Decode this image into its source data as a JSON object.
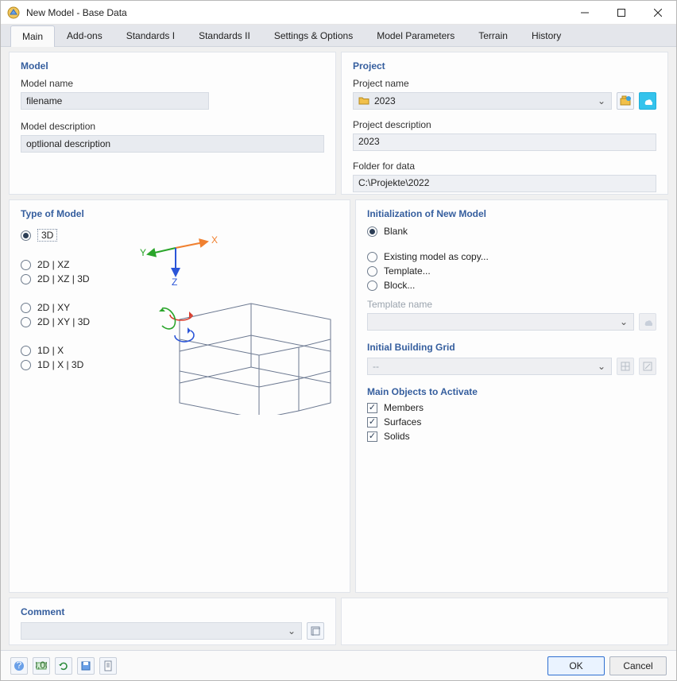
{
  "window": {
    "title": "New Model - Base Data"
  },
  "tabs": [
    {
      "label": "Main",
      "active": true
    },
    {
      "label": "Add-ons"
    },
    {
      "label": "Standards I"
    },
    {
      "label": "Standards II"
    },
    {
      "label": "Settings & Options"
    },
    {
      "label": "Model Parameters"
    },
    {
      "label": "Terrain"
    },
    {
      "label": "History"
    }
  ],
  "model": {
    "section": "Model",
    "name_label": "Model name",
    "name_value": "filename",
    "desc_label": "Model description",
    "desc_value": "optlional description"
  },
  "project": {
    "section": "Project",
    "name_label": "Project name",
    "name_value": "2023",
    "desc_label": "Project description",
    "desc_value": "2023",
    "folder_label": "Folder for data",
    "folder_value": "C:\\Projekte\\2022"
  },
  "type_of_model": {
    "section": "Type of Model",
    "axes": {
      "x": "X",
      "y": "Y",
      "z": "Z"
    },
    "options": [
      {
        "key": "3d",
        "label": "3D",
        "selected": true
      },
      {
        "key": "2d_xz",
        "label": "2D | XZ"
      },
      {
        "key": "2d_xz_3d",
        "label": "2D | XZ | 3D"
      },
      {
        "key": "2d_xy",
        "label": "2D | XY"
      },
      {
        "key": "2d_xy_3d",
        "label": "2D | XY | 3D"
      },
      {
        "key": "1d_x",
        "label": "1D | X"
      },
      {
        "key": "1d_x_3d",
        "label": "1D | X | 3D"
      }
    ]
  },
  "init": {
    "section": "Initialization of New Model",
    "options": [
      {
        "key": "blank",
        "label": "Blank",
        "selected": true
      },
      {
        "key": "existing",
        "label": "Existing model as copy..."
      },
      {
        "key": "template",
        "label": "Template..."
      },
      {
        "key": "block",
        "label": "Block..."
      }
    ],
    "template_label": "Template name",
    "template_value": ""
  },
  "building_grid": {
    "section": "Initial Building Grid",
    "value": "--"
  },
  "main_objects": {
    "section": "Main Objects to Activate",
    "items": [
      {
        "key": "members",
        "label": "Members",
        "checked": true
      },
      {
        "key": "surfaces",
        "label": "Surfaces",
        "checked": true
      },
      {
        "key": "solids",
        "label": "Solids",
        "checked": true
      }
    ]
  },
  "comment": {
    "section": "Comment",
    "value": ""
  },
  "buttons": {
    "ok": "OK",
    "cancel": "Cancel"
  },
  "colors": {
    "x_axis": "#f08030",
    "y_axis": "#2aa52a",
    "z_axis": "#2b55d8",
    "wire": "#6b7890",
    "rot_red": "#d83a2a",
    "rot_green": "#2aa52a",
    "rot_blue": "#2b55d8"
  }
}
